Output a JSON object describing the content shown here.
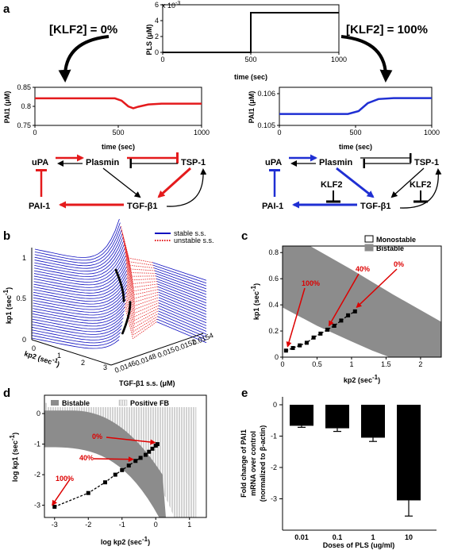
{
  "panels": {
    "a": "a",
    "b": "b",
    "c": "c",
    "d": "d",
    "e": "e"
  },
  "panel_a": {
    "klf_left": "[KLF2] = 0%",
    "klf_right": "[KLF2] = 100%",
    "pls": {
      "ylabel": "PLS (μM)",
      "xlabel": "time (sec)",
      "exponent": "x 10",
      "exponent_power": "-3",
      "yticks": [
        "0",
        "2",
        "4",
        "6"
      ],
      "xticks": [
        "0",
        "500",
        "1000"
      ],
      "step": {
        "t_step": 500,
        "low": 0,
        "high": 5.0,
        "ymax": 6
      },
      "color": "#000000"
    },
    "pai_left": {
      "ylabel": "PAI1 (μM)",
      "xlabel": "time (sec)",
      "yticks": [
        "0.75",
        "0.8",
        "0.85"
      ],
      "xticks": [
        "0",
        "500",
        "1000"
      ],
      "ylim": [
        0.75,
        0.85
      ],
      "points": [
        [
          0,
          0.821
        ],
        [
          480,
          0.821
        ],
        [
          520,
          0.815
        ],
        [
          560,
          0.8
        ],
        [
          590,
          0.795
        ],
        [
          620,
          0.799
        ],
        [
          680,
          0.805
        ],
        [
          760,
          0.807
        ],
        [
          1000,
          0.807
        ]
      ],
      "color": "#e41a1c"
    },
    "pai_right": {
      "ylabel": "PAI1 (μM)",
      "xlabel": "time (sec)",
      "yticks": [
        "0.105",
        "0.106"
      ],
      "xticks": [
        "0",
        "500",
        "1000"
      ],
      "ylim": [
        0.105,
        0.1062
      ],
      "points": [
        [
          0,
          0.10536
        ],
        [
          450,
          0.10536
        ],
        [
          520,
          0.10545
        ],
        [
          580,
          0.1057
        ],
        [
          650,
          0.10583
        ],
        [
          750,
          0.10586
        ],
        [
          1000,
          0.10586
        ]
      ],
      "color": "#1f2fd3"
    },
    "network_left": {
      "upa": "uPA",
      "plasmin": "Plasmin",
      "tsp": "TSP-1",
      "pai": "PAI-1",
      "tgf": "TGF-β1"
    },
    "network_right": {
      "upa": "uPA",
      "plasmin": "Plasmin",
      "tsp": "TSP-1",
      "pai": "PAI-1",
      "tgf": "TGF-β1",
      "klf_a": "KLF2",
      "klf_b": "KLF2"
    }
  },
  "panel_b": {
    "legend_stable": "stable s.s.",
    "legend_unstable": "unstable s.s.",
    "ylabel": "kp1 (sec",
    "xlabel": "kp2 (sec",
    "zlabel": "TGF-β1 s.s. (μM)",
    "exp": "-1",
    "yticks": [
      "0",
      "0.5",
      "1"
    ],
    "xticks": [
      "0",
      "1",
      "2",
      "3"
    ],
    "zticks": [
      "0.0146",
      "0.0148",
      "0.015",
      "0.0152",
      "0.0154"
    ],
    "colors": {
      "stable": "#1010c0",
      "unstable": "#e41a1c"
    }
  },
  "panel_c": {
    "legend_mono": "Monostable",
    "legend_bi": "Bistable",
    "ylabel": "kp1 (sec",
    "xlabel": "kp2 (sec",
    "exp": "-1",
    "yticks": [
      "0",
      "0.2",
      "0.4",
      "0.6",
      "0.8"
    ],
    "xticks": [
      "0",
      "0.5",
      "1",
      "1.5",
      "2"
    ],
    "xlim": [
      0,
      2.3
    ],
    "ylim": [
      0,
      0.85
    ],
    "bistable_lower": [
      [
        0,
        0.38
      ],
      [
        0.5,
        0.24
      ],
      [
        1.0,
        0.12
      ],
      [
        1.3,
        0.05
      ],
      [
        1.55,
        0
      ]
    ],
    "bistable_upper": [
      [
        0,
        0.85
      ],
      [
        0.4,
        0.85
      ],
      [
        1.0,
        0.67
      ],
      [
        1.6,
        0.48
      ],
      [
        2.3,
        0.27
      ]
    ],
    "points": [
      [
        0.05,
        0.05
      ],
      [
        0.15,
        0.07
      ],
      [
        0.25,
        0.09
      ],
      [
        0.35,
        0.11
      ],
      [
        0.45,
        0.15
      ],
      [
        0.55,
        0.18
      ],
      [
        0.65,
        0.21
      ],
      [
        0.75,
        0.24
      ],
      [
        0.85,
        0.28
      ],
      [
        0.95,
        0.32
      ],
      [
        1.05,
        0.35
      ]
    ],
    "annotations": [
      {
        "text": "100%",
        "x": 0.05,
        "y": 0.05
      },
      {
        "text": "40%",
        "x": 0.65,
        "y": 0.21
      },
      {
        "text": "0%",
        "x": 1.05,
        "y": 0.35
      }
    ],
    "colors": {
      "bistable": "#8c8c8c"
    }
  },
  "panel_d": {
    "legend_bi": "Bistable",
    "legend_fb": "Positive FB",
    "ylabel": "log kp1 (sec",
    "xlabel": "log kp2 (sec",
    "exp": "-1",
    "yticks": [
      "-3",
      "-2",
      "-1",
      "0"
    ],
    "xticks": [
      "-3",
      "-2",
      "-1",
      "0",
      "1"
    ],
    "xlim": [
      -3.3,
      1.5
    ],
    "ylim": [
      -3.4,
      0.6
    ],
    "points": [
      [
        -3,
        -3.05
      ],
      [
        -2,
        -2.6
      ],
      [
        -1.5,
        -2.25
      ],
      [
        -1.2,
        -2.0
      ],
      [
        -1.0,
        -1.85
      ],
      [
        -0.8,
        -1.7
      ],
      [
        -0.6,
        -1.55
      ],
      [
        -0.45,
        -1.45
      ],
      [
        -0.3,
        -1.35
      ],
      [
        -0.2,
        -1.25
      ],
      [
        -0.1,
        -1.15
      ],
      [
        0,
        -1.05
      ],
      [
        0.05,
        -1.0
      ]
    ],
    "annotations": [
      {
        "text": "100%",
        "x": -3,
        "y": -3.05
      },
      {
        "text": "40%",
        "x": -0.6,
        "y": -1.55
      },
      {
        "text": "0%",
        "x": 0.05,
        "y": -1.0
      }
    ],
    "colors": {
      "bistable": "#8c8c8c",
      "fb": "#c8c8c8"
    }
  },
  "panel_e": {
    "ylabel_lines": [
      "Fold change of PAI1",
      "mRNA over control",
      "(normalized to β-actin)"
    ],
    "xlabel": "Doses of PLS (ug/ml)",
    "yticks": [
      "0",
      "-1",
      "-2",
      "-3"
    ],
    "ylim": [
      -4,
      0
    ],
    "chart_data": {
      "type": "bar",
      "categories": [
        "0.01",
        "0.1",
        "1",
        "10"
      ],
      "values": [
        -0.67,
        -0.75,
        -1.05,
        -3.05
      ],
      "errors": [
        0.05,
        0.1,
        0.12,
        0.5
      ]
    },
    "color": "#000000"
  }
}
